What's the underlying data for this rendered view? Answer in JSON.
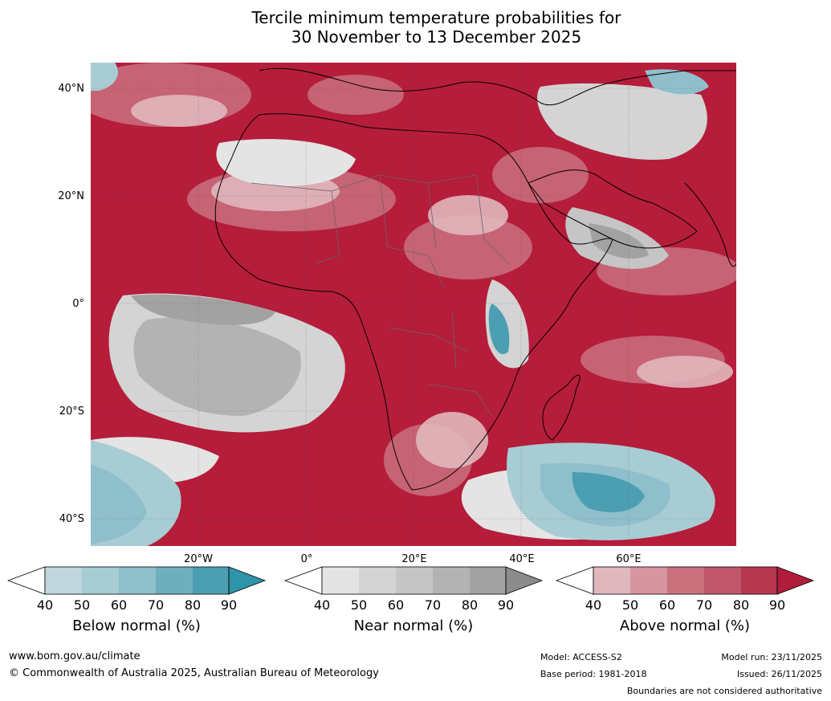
{
  "title": {
    "line1": "Tercile minimum temperature probabilities for",
    "line2": "30 November to 13 December 2025"
  },
  "map": {
    "lat_labels": [
      "40°N",
      "20°N",
      "0°",
      "20°S",
      "40°S"
    ],
    "lon_labels": [
      "20°W",
      "0°",
      "20°E",
      "40°E",
      "60°E"
    ]
  },
  "colorbars": {
    "below": {
      "label": "Below normal (%)",
      "ticks": [
        "40",
        "50",
        "60",
        "70",
        "80",
        "90"
      ],
      "colors": [
        "#ffffff",
        "#bfd6dd",
        "#a8ccd4",
        "#8ebfcb",
        "#6eafbd",
        "#4c9fb2",
        "#2e94aa"
      ]
    },
    "near": {
      "label": "Near normal (%)",
      "ticks": [
        "40",
        "50",
        "60",
        "70",
        "80",
        "90"
      ],
      "colors": [
        "#ffffff",
        "#e4e4e4",
        "#d4d4d4",
        "#c5c5c5",
        "#b3b3b3",
        "#a2a2a2",
        "#8c8c8c"
      ]
    },
    "above": {
      "label": "Above normal (%)",
      "ticks": [
        "40",
        "50",
        "60",
        "70",
        "80",
        "90"
      ],
      "colors": [
        "#ffffff",
        "#e0b7bd",
        "#d7959f",
        "#ca717e",
        "#c0566a",
        "#b53850",
        "#b01c3a"
      ]
    }
  },
  "footer": {
    "website": "www.bom.gov.au/climate",
    "copyright": "© Commonwealth of Australia 2025, Australian Bureau of Meteorology",
    "model": "Model: ACCESS-S2",
    "base_period": "Base period: 1981-2018",
    "model_run": "Model run: 23/11/2025",
    "issued": "Issued: 26/11/2025",
    "disclaimer": "Boundaries are not considered authoritative"
  }
}
